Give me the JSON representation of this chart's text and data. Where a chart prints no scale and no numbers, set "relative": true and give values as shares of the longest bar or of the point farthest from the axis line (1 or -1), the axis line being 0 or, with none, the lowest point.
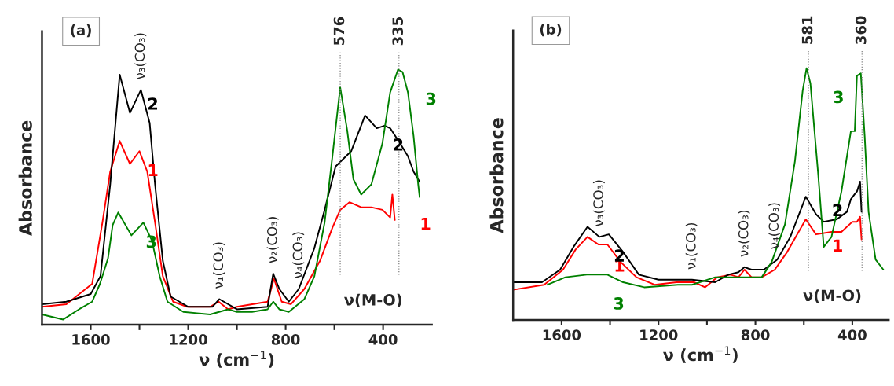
{
  "chart_data": [
    {
      "type": "line",
      "title": "(a)",
      "xlabel": "ν (cm$^{−1}$)",
      "ylabel": "Absorbance",
      "relative": true,
      "xlim": [
        1800,
        200
      ],
      "xticks": [
        1600,
        {
          "value": 1400,
          "label": null
        },
        1200,
        {
          "value": 1000,
          "label": null
        },
        800,
        {
          "value": 600,
          "label": null
        },
        400
      ],
      "series": [
        {
          "name": "1",
          "color": "#ff0000",
          "x": [
            1800,
            1700,
            1594,
            1552,
            1520,
            1481,
            1439,
            1400,
            1368,
            1336,
            1304,
            1262,
            1204,
            1110,
            1075,
            1036,
            1000,
            874,
            848,
            816,
            778,
            723,
            659,
            608,
            576,
            538,
            490,
            448,
            403,
            371,
            362,
            352
          ],
          "values": [
            0.07,
            0.08,
            0.16,
            0.4,
            0.6,
            0.72,
            0.63,
            0.68,
            0.6,
            0.4,
            0.19,
            0.09,
            0.07,
            0.07,
            0.09,
            0.06,
            0.07,
            0.09,
            0.18,
            0.09,
            0.08,
            0.14,
            0.25,
            0.38,
            0.45,
            0.48,
            0.46,
            0.46,
            0.45,
            0.42,
            0.51,
            0.41
          ]
        },
        {
          "name": "2",
          "color": "#000000",
          "x": [
            1800,
            1700,
            1600,
            1560,
            1520,
            1481,
            1439,
            1394,
            1358,
            1336,
            1304,
            1272,
            1200,
            1100,
            1072,
            1000,
            874,
            851,
            826,
            787,
            746,
            682,
            640,
            595,
            563,
            531,
            474,
            426,
            394,
            371,
            330,
            298,
            275,
            250
          ],
          "values": [
            0.08,
            0.09,
            0.12,
            0.19,
            0.55,
            0.98,
            0.83,
            0.92,
            0.79,
            0.55,
            0.25,
            0.11,
            0.07,
            0.07,
            0.1,
            0.06,
            0.07,
            0.2,
            0.14,
            0.09,
            0.14,
            0.3,
            0.45,
            0.62,
            0.65,
            0.68,
            0.82,
            0.77,
            0.78,
            0.77,
            0.71,
            0.66,
            0.6,
            0.56
          ]
        },
        {
          "name": "3",
          "color": "#008000",
          "x": [
            1800,
            1713,
            1648,
            1594,
            1562,
            1529,
            1510,
            1487,
            1433,
            1384,
            1349,
            1317,
            1285,
            1220,
            1110,
            1036,
            1000,
            938,
            874,
            851,
            826,
            787,
            723,
            682,
            640,
            608,
            576,
            547,
            522,
            490,
            448,
            403,
            371,
            339,
            320,
            298,
            275,
            256,
            250
          ],
          "values": [
            0.04,
            0.02,
            0.06,
            0.09,
            0.16,
            0.26,
            0.39,
            0.44,
            0.35,
            0.4,
            0.33,
            0.19,
            0.09,
            0.05,
            0.04,
            0.06,
            0.05,
            0.05,
            0.06,
            0.09,
            0.06,
            0.05,
            0.1,
            0.19,
            0.4,
            0.66,
            0.93,
            0.76,
            0.57,
            0.51,
            0.55,
            0.71,
            0.91,
            1,
            0.99,
            0.91,
            0.74,
            0.55,
            0.5
          ]
        }
      ],
      "ref_lines": [
        {
          "axis": "x",
          "value": 576,
          "label": "576",
          "color": "#808080",
          "line_style": "dotted"
        },
        {
          "axis": "x",
          "value": 335,
          "label": "335",
          "color": "#808080",
          "line_style": "dotted"
        }
      ],
      "annotations": [
        {
          "text": "ν₃(CO₃)",
          "x": 1394,
          "y": 0.92
        },
        {
          "text": "ν₁(CO₃)",
          "x": 1072,
          "y": 0.1
        },
        {
          "text": "ν₂(CO₃)",
          "x": 851,
          "y": 0.2
        },
        {
          "text": "ν₄(CO₃)",
          "x": 746,
          "y": 0.14
        },
        "ν(M-O)"
      ],
      "legend": false,
      "grid": false
    },
    {
      "type": "line",
      "title": "(b)",
      "xlabel": "ν (cm$^{−1}$)",
      "ylabel": "Absorbance",
      "relative": true,
      "xlim": [
        1800,
        250
      ],
      "xticks": [
        1600,
        {
          "value": 1400,
          "label": null
        },
        1200,
        {
          "value": 1000,
          "label": null
        },
        800,
        {
          "value": 600,
          "label": null
        },
        400
      ],
      "series": [
        {
          "name": "1",
          "color": "#ff0000",
          "x": [
            1800,
            1672,
            1594,
            1542,
            1493,
            1448,
            1411,
            1356,
            1291,
            1216,
            1126,
            1053,
            1008,
            957,
            902,
            870,
            845,
            816,
            774,
            720,
            669,
            592,
            550,
            486,
            445,
            400,
            381,
            368,
            362
          ],
          "values": [
            0.12,
            0.14,
            0.2,
            0.28,
            0.33,
            0.3,
            0.3,
            0.23,
            0.17,
            0.14,
            0.15,
            0.15,
            0.13,
            0.17,
            0.18,
            0.17,
            0.2,
            0.17,
            0.17,
            0.2,
            0.27,
            0.4,
            0.34,
            0.35,
            0.35,
            0.39,
            0.39,
            0.41,
            0.32
          ]
        },
        {
          "name": "2",
          "color": "#000000",
          "x": [
            1800,
            1681,
            1606,
            1551,
            1493,
            1444,
            1405,
            1346,
            1281,
            1200,
            1062,
            966,
            912,
            870,
            845,
            816,
            765,
            710,
            656,
            592,
            550,
            518,
            464,
            422,
            406,
            390,
            381,
            368,
            362
          ],
          "values": [
            0.15,
            0.15,
            0.2,
            0.29,
            0.37,
            0.33,
            0.34,
            0.27,
            0.18,
            0.16,
            0.16,
            0.15,
            0.18,
            0.19,
            0.21,
            0.2,
            0.2,
            0.24,
            0.33,
            0.49,
            0.42,
            0.39,
            0.4,
            0.43,
            0.48,
            0.5,
            0.51,
            0.55,
            0.43
          ]
        },
        {
          "name": "3",
          "color": "#008000",
          "x": [
            1658,
            1584,
            1496,
            1411,
            1346,
            1259,
            1120,
            1062,
            966,
            861,
            774,
            733,
            678,
            637,
            605,
            589,
            573,
            541,
            518,
            486,
            445,
            406,
            390,
            381,
            365,
            349,
            333,
            304,
            272
          ],
          "values": [
            0.14,
            0.17,
            0.18,
            0.18,
            0.15,
            0.13,
            0.14,
            0.14,
            0.17,
            0.17,
            0.17,
            0.23,
            0.38,
            0.63,
            0.91,
            1,
            0.94,
            0.58,
            0.29,
            0.33,
            0.51,
            0.75,
            0.75,
            0.97,
            0.98,
            0.73,
            0.43,
            0.24,
            0.2
          ]
        }
      ],
      "ref_lines": [
        {
          "axis": "x",
          "value": 581,
          "label": "581",
          "color": "#808080",
          "line_style": "dotted"
        },
        {
          "axis": "x",
          "value": 360,
          "label": "360",
          "color": "#808080",
          "line_style": "dotted"
        }
      ],
      "annotations": [
        {
          "text": "ν₃(CO₃)",
          "x": 1444,
          "y": 0.33
        },
        {
          "text": "ν₁(CO₃)",
          "x": 1062,
          "y": 0.16
        },
        {
          "text": "ν₂(CO₃)",
          "x": 845,
          "y": 0.21
        },
        {
          "text": "ν₄(CO₃)",
          "x": 720,
          "y": 0.24
        },
        "ν(M-O)"
      ],
      "legend": false,
      "grid": false
    }
  ]
}
